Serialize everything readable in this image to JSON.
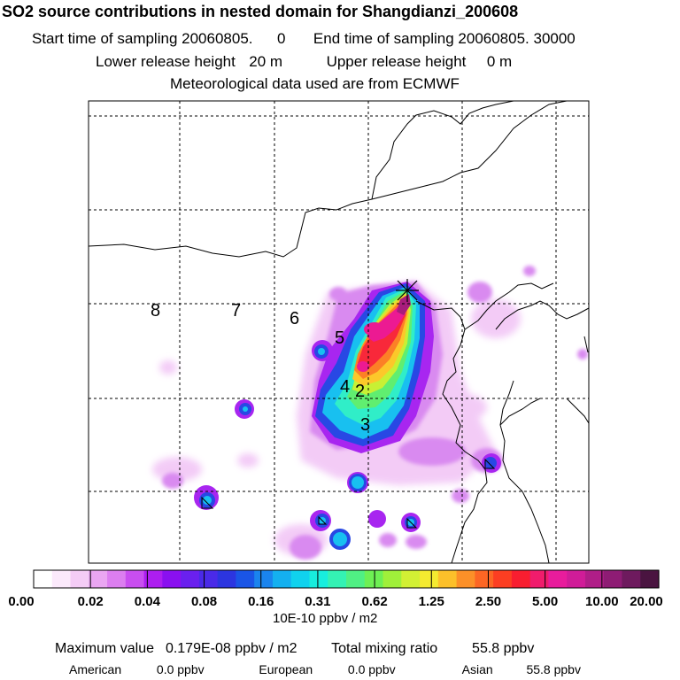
{
  "header": {
    "title": "SO2 source contributions in nested domain for Shangdianzi_200608",
    "start_label": "Start time of sampling",
    "start_value": "20060805.",
    "start_hour": "0",
    "end_label": "End time of sampling",
    "end_value": "20060805. 30000",
    "lower_label": "Lower release height",
    "lower_value": "20 m",
    "upper_label": "Upper release height",
    "upper_value": "0 m",
    "met_text": "Meteorological data used are from ECMWF"
  },
  "map": {
    "track_labels": [
      "8",
      "7",
      "6",
      "5",
      "4",
      "2",
      "3"
    ],
    "receptor_symbol": "receptor-cross"
  },
  "colorbar": {
    "tick_labels": [
      "0.00",
      "0.02",
      "0.04",
      "0.08",
      "0.16",
      "0.31",
      "0.62",
      "1.25",
      "2.50",
      "5.00",
      "10.00",
      "20.00"
    ],
    "unit": "10E-10 ppbv / m2",
    "colors": [
      "#ffffff",
      "#fbe9fb",
      "#f4ccf6",
      "#eaa6f2",
      "#dc7ef0",
      "#c94ef0",
      "#ad1ef0",
      "#8a10f0",
      "#6a20ee",
      "#4a2ae8",
      "#2c35e0",
      "#1a55e6",
      "#1a84ee",
      "#14b0f0",
      "#10d2ee",
      "#18eede",
      "#34f2b4",
      "#50f084",
      "#6ef054",
      "#a0f03a",
      "#d2f034",
      "#f4ea30",
      "#fcc02a",
      "#fc9028",
      "#fc6624",
      "#fc3e22",
      "#f81e30",
      "#f01c6c",
      "#e81c9c",
      "#d01c98",
      "#b01e88",
      "#8e1c74",
      "#6e1a5e",
      "#4a1440"
    ]
  },
  "footer": {
    "max_label": "Maximum value",
    "max_value": "0.179E-08 ppbv / m2",
    "total_label": "Total mixing ratio",
    "total_value": "55.8 ppbv",
    "american_label": "American",
    "american_value": "0.0 ppbv",
    "european_label": "European",
    "european_value": "0.0 ppbv",
    "asian_label": "Asian",
    "asian_value": "55.8 ppbv"
  },
  "chart_data": {
    "type": "heatmap",
    "title": "SO2 source contributions in nested domain for Shangdianzi_200608",
    "color_scale": {
      "boundaries": [
        0.0,
        0.02,
        0.04,
        0.08,
        0.16,
        0.31,
        0.62,
        1.25,
        2.5,
        5.0,
        10.0,
        20.0
      ],
      "unit": "10E-10 ppbv / m2"
    },
    "maximum_value": "0.179E-08 ppbv / m2",
    "total_mixing_ratio_ppbv": 55.8,
    "contributions_ppbv": {
      "American": 0.0,
      "European": 0.0,
      "Asian": 55.8
    },
    "grid": true
  }
}
